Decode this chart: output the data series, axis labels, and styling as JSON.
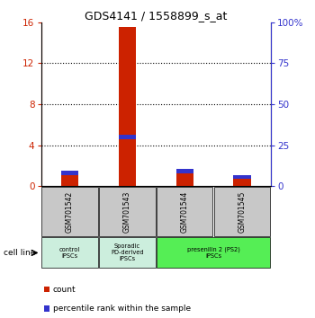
{
  "title": "GDS4141 / 1558899_s_at",
  "samples": [
    "GSM701542",
    "GSM701543",
    "GSM701544",
    "GSM701545"
  ],
  "count_values": [
    1.2,
    15.5,
    1.3,
    0.7
  ],
  "percentile_values": [
    8.0,
    30.0,
    9.0,
    5.5
  ],
  "bar_width": 0.3,
  "ylim_left": [
    0,
    16
  ],
  "ylim_right": [
    0,
    100
  ],
  "yticks_left": [
    0,
    4,
    8,
    12,
    16
  ],
  "yticks_right": [
    0,
    25,
    50,
    75,
    100
  ],
  "ytick_labels_right": [
    "0",
    "25",
    "50",
    "75",
    "100%"
  ],
  "color_count": "#cc2200",
  "color_percentile": "#3333cc",
  "group_defs": [
    [
      0,
      0,
      "control\nIPSCs",
      "#cceedd"
    ],
    [
      1,
      1,
      "Sporadic\nPD-derived\niPSCs",
      "#cceedd"
    ],
    [
      2,
      3,
      "presenilin 2 (PS2)\niPSCs",
      "#55ee55"
    ]
  ],
  "cell_line_label": "cell line",
  "legend_count": "count",
  "legend_percentile": "percentile rank within the sample",
  "sample_box_color": "#c8c8c8",
  "bg_plot": "#ffffff"
}
